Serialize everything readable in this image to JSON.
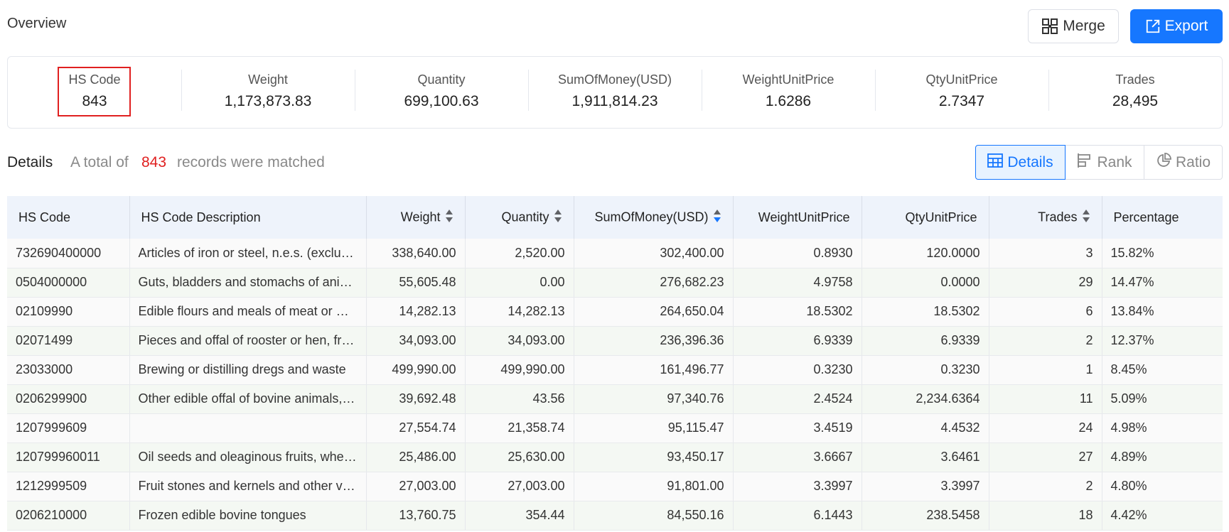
{
  "header": {
    "title": "Overview",
    "merge_label": "Merge",
    "export_label": "Export"
  },
  "summary": [
    {
      "label": "HS Code",
      "value": "843"
    },
    {
      "label": "Weight",
      "value": "1,173,873.83"
    },
    {
      "label": "Quantity",
      "value": "699,100.63"
    },
    {
      "label": "SumOfMoney(USD)",
      "value": "1,911,814.23"
    },
    {
      "label": "WeightUnitPrice",
      "value": "1.6286"
    },
    {
      "label": "QtyUnitPrice",
      "value": "2.7347"
    },
    {
      "label": "Trades",
      "value": "28,495"
    }
  ],
  "details": {
    "title": "Details",
    "total_prefix": "A total of",
    "total_count": "843",
    "total_suffix": "records were matched",
    "view_tabs": [
      "Details",
      "Rank",
      "Ratio"
    ],
    "active_tab": "Details"
  },
  "colors": {
    "accent": "#1677ff",
    "highlight": "#e02020",
    "header_bg": "#eef3fb"
  },
  "table": {
    "columns": [
      "HS Code",
      "HS Code Description",
      "Weight",
      "Quantity",
      "SumOfMoney(USD)",
      "WeightUnitPrice",
      "QtyUnitPrice",
      "Trades",
      "Percentage"
    ],
    "sortable_columns": [
      "Weight",
      "Quantity",
      "SumOfMoney(USD)",
      "Trades"
    ],
    "sorted_column": "SumOfMoney(USD)",
    "sort_direction": "descending",
    "rows": [
      [
        "732690400000",
        "Articles of iron or steel, n.e.s. (excluding cast articles or articles of ope",
        "338,640.00",
        "2,520.00",
        "302,400.00",
        "0.8930",
        "120.0000",
        "3",
        "15.82%"
      ],
      [
        "0504000000",
        "Guts, bladders and stomachs of animals (other than fish), whole and piece",
        "55,605.48",
        "0.00",
        "276,682.23",
        "4.9758",
        "0.0000",
        "29",
        "14.47%"
      ],
      [
        "02109990",
        "Edible flours and meals of meat or meat offal",
        "14,282.13",
        "14,282.13",
        "264,650.04",
        "18.5302",
        "18.5302",
        "6",
        "13.84%"
      ],
      [
        "02071499",
        "Pieces and offal of rooster or hen, frozen",
        "34,093.00",
        "34,093.00",
        "236,396.36",
        "6.9339",
        "6.9339",
        "2",
        "12.37%"
      ],
      [
        "23033000",
        "Brewing or distilling dregs and waste",
        "499,990.00",
        "499,990.00",
        "161,496.77",
        "0.3230",
        "0.3230",
        "1",
        "8.45%"
      ],
      [
        "0206299900",
        "Other edible offal of bovine animals, frozen",
        "39,692.48",
        "43.56",
        "97,340.76",
        "2.4524",
        "2,234.6364",
        "11",
        "5.09%"
      ],
      [
        "1207999609",
        "",
        "27,554.74",
        "21,358.74",
        "95,115.47",
        "3.4519",
        "4.4532",
        "24",
        "4.98%"
      ],
      [
        "120799960011",
        "Oil seeds and oleaginous fruits, whether or not broken",
        "25,486.00",
        "25,630.00",
        "93,450.17",
        "3.6667",
        "3.6461",
        "27",
        "4.89%"
      ],
      [
        "1212999509",
        "Fruit stones and kernels and other vegetable products",
        "27,003.00",
        "27,003.00",
        "91,801.00",
        "3.3997",
        "3.3997",
        "2",
        "4.80%"
      ],
      [
        "0206210000",
        "Frozen edible bovine tongues",
        "13,760.75",
        "354.44",
        "84,550.16",
        "6.1443",
        "238.5458",
        "18",
        "4.42%"
      ]
    ]
  }
}
